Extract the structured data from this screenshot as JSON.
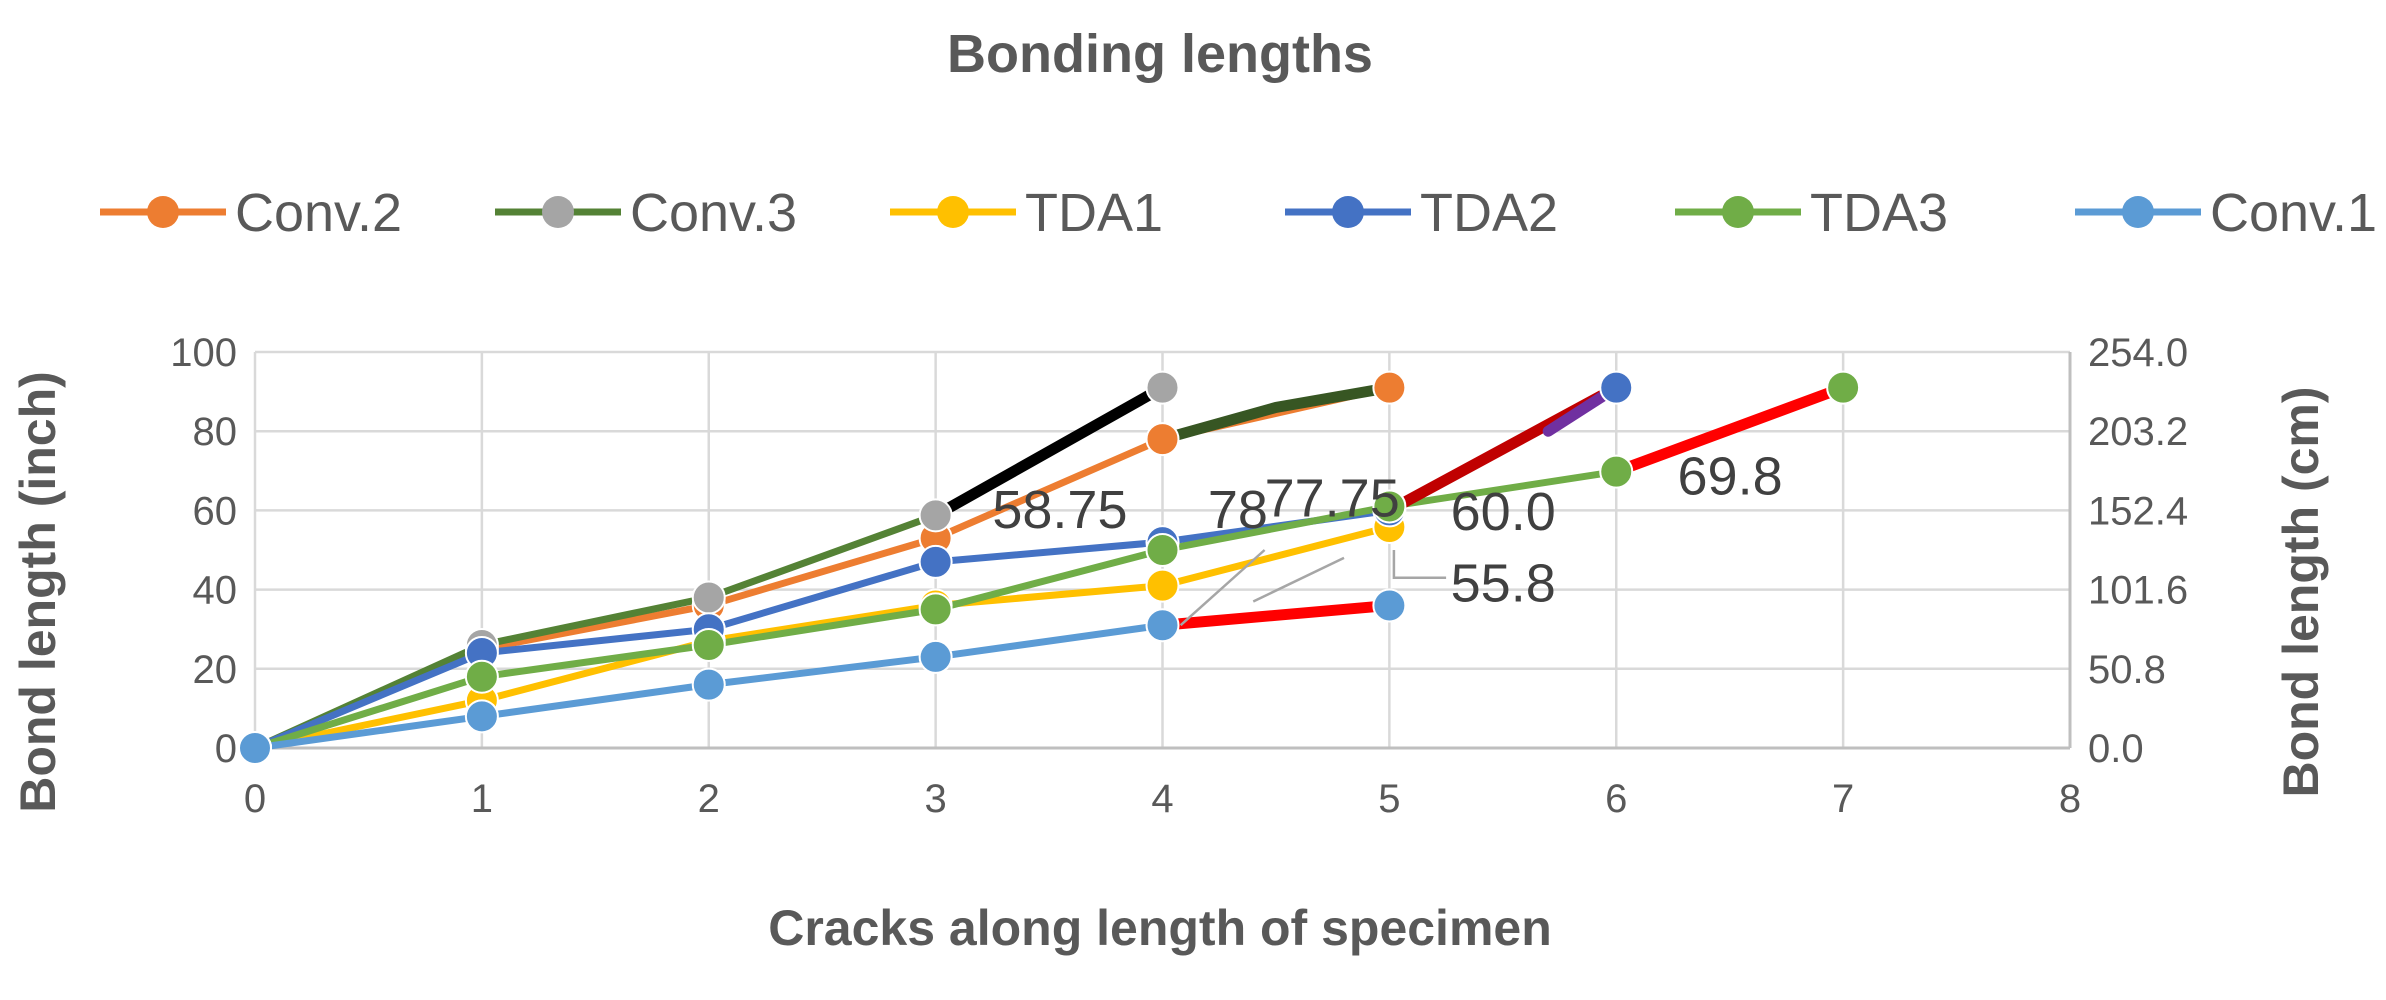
{
  "chart_data": {
    "type": "line",
    "title": "Bonding lengths",
    "xlabel": "Cracks along length of specimen",
    "ylabel": "Bond length (inch)",
    "y2label": "Bond length (cm)",
    "xlim": [
      0,
      8
    ],
    "ylim": [
      0,
      100
    ],
    "x_ticks": [
      "0",
      "1",
      "2",
      "3",
      "4",
      "5",
      "6",
      "7",
      "8"
    ],
    "y_ticks": [
      "0",
      "20",
      "40",
      "60",
      "80",
      "100"
    ],
    "y2_ticks": [
      "0.0",
      "50.8",
      "101.6",
      "152.4",
      "203.2",
      "254.0"
    ],
    "grid": true,
    "legend_position": "top",
    "series": [
      {
        "name": "Conv.2",
        "color": "#ED7D31",
        "x": [
          0,
          1,
          2,
          3,
          4,
          5
        ],
        "values": [
          0,
          25,
          36,
          53,
          78,
          91
        ]
      },
      {
        "name": "Conv.3",
        "color": "#548235",
        "marker_color": "#A5A5A5",
        "x": [
          0,
          1,
          2,
          3,
          4
        ],
        "values": [
          0,
          26,
          38,
          58.75,
          91
        ]
      },
      {
        "name": "TDA1",
        "color": "#FFC000",
        "x": [
          0,
          1,
          2,
          3,
          4,
          5
        ],
        "values": [
          0,
          12,
          27,
          36,
          41,
          55.8
        ]
      },
      {
        "name": "TDA2",
        "color": "#4472C4",
        "x": [
          0,
          1,
          2,
          3,
          4,
          5,
          6
        ],
        "values": [
          0,
          24,
          30,
          47,
          52,
          60,
          91
        ]
      },
      {
        "name": "TDA3",
        "color": "#70AD47",
        "x": [
          0,
          1,
          2,
          3,
          4,
          5,
          6,
          7
        ],
        "values": [
          0,
          18,
          26,
          35,
          50,
          61,
          69.8,
          91
        ]
      },
      {
        "name": "Conv.1",
        "color": "#5B9BD5",
        "x": [
          0,
          1,
          2,
          3,
          4,
          5
        ],
        "values": [
          0,
          8,
          16,
          23,
          31,
          36
        ]
      }
    ],
    "overlay_segments": [
      {
        "color": "#000000",
        "x": [
          3,
          4
        ],
        "values": [
          58.75,
          91
        ]
      },
      {
        "color": "#375623",
        "x": [
          4,
          4.5,
          5
        ],
        "values": [
          78,
          86,
          91
        ]
      },
      {
        "color": "#FF0000",
        "x": [
          4,
          5
        ],
        "values": [
          31,
          36
        ]
      },
      {
        "color": "#C00000",
        "x": [
          5,
          6
        ],
        "values": [
          60,
          91
        ]
      },
      {
        "color": "#7030A0",
        "x": [
          5.7,
          6
        ],
        "values": [
          80,
          91
        ]
      },
      {
        "color": "#FF0000",
        "x": [
          6,
          7
        ],
        "values": [
          69.8,
          91
        ]
      }
    ],
    "annotations": [
      {
        "text": "58.75",
        "x": 3.25,
        "y": 55.5
      },
      {
        "text": "77.75",
        "x": 4.45,
        "y": 58.5
      },
      {
        "text": "78",
        "x": 4.2,
        "y": 55.5
      },
      {
        "text": "60.0",
        "x": 5.27,
        "y": 55
      },
      {
        "text": "55.8",
        "x": 5.27,
        "y": 37
      },
      {
        "text": "69.8",
        "x": 6.27,
        "y": 64
      }
    ]
  }
}
